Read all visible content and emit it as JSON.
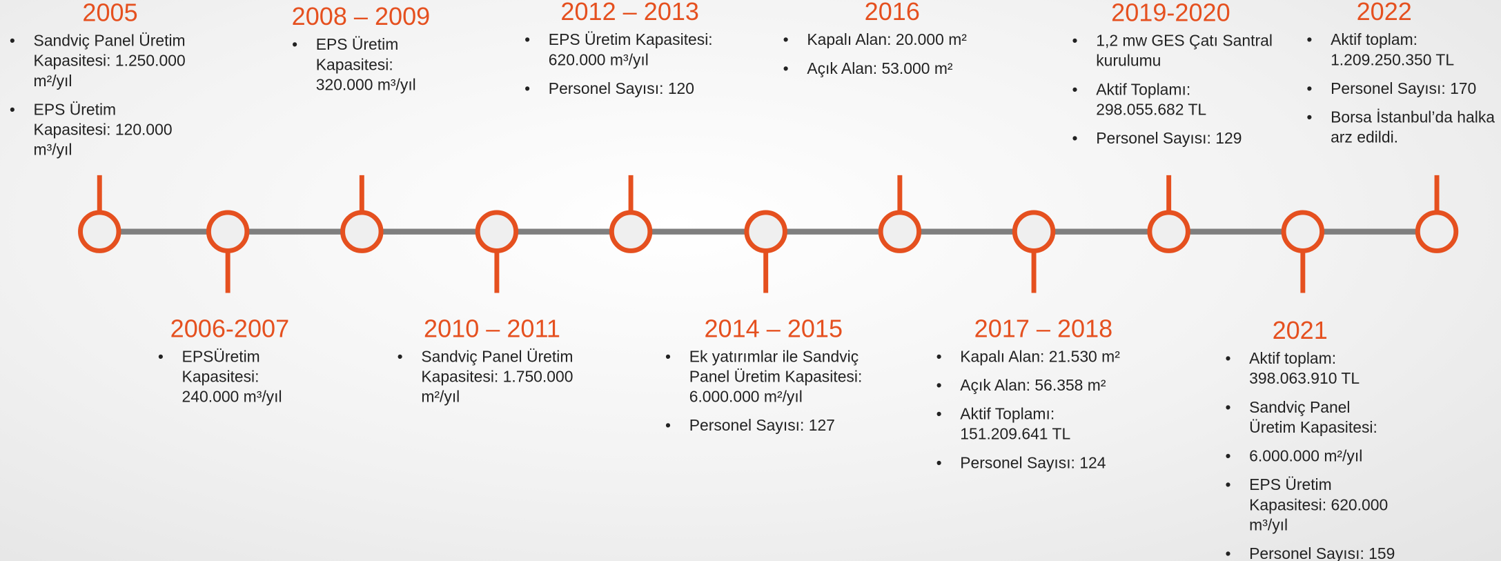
{
  "milestones": [
    {
      "year": "2005",
      "items": [
        "Sandviç Panel Üretim Kapasitesi: 1.250.000 m²/yıl",
        "EPS Üretim Kapasitesi: 120.000 m³/yıl"
      ]
    },
    {
      "year": "2006-2007",
      "items": [
        "EPSÜretim Kapasitesi: 240.000 m³/yıl"
      ]
    },
    {
      "year": "2008 – 2009",
      "items": [
        "EPS Üretim Kapasitesi: 320.000 m³/yıl"
      ]
    },
    {
      "year": "2010 – 2011",
      "items": [
        "Sandviç Panel Üretim Kapasitesi: 1.750.000 m²/yıl"
      ]
    },
    {
      "year": "2012 – 2013",
      "items": [
        "EPS Üretim  Kapasitesi: 620.000 m³/yıl",
        "Personel Sayısı: 120"
      ]
    },
    {
      "year": "2014 – 2015",
      "items": [
        "Ek yatırımlar ile Sandviç Panel Üretim Kapasitesi: 6.000.000 m²/yıl",
        "Personel Sayısı: 127"
      ]
    },
    {
      "year": "2016",
      "items": [
        "Kapalı Alan: 20.000 m²",
        "Açık Alan: 53.000 m²"
      ]
    },
    {
      "year": "2017 – 2018",
      "items": [
        "Kapalı Alan: 21.530 m²",
        "Açık Alan: 56.358 m²",
        "Aktif Toplamı: 151.209.641 TL",
        "Personel Sayısı: 124"
      ]
    },
    {
      "year": "2019-2020",
      "items": [
        "1,2 mw GES Çatı Santral kurulumu",
        "Aktif Toplamı: 298.055.682 TL",
        "Personel Sayısı: 129"
      ]
    },
    {
      "year": "2021",
      "items": [
        "Aktif toplam: 398.063.910 TL",
        "Sandviç Panel Üretim Kapasitesi:",
        "6.000.000 m²/yıl",
        "EPS Üretim Kapasitesi: 620.000 m³/yıl",
        "Personel Sayısı: 159"
      ]
    },
    {
      "year": "2022",
      "items": [
        "Aktif toplam: 1.209.250.350 TL",
        "Personel Sayısı: 170",
        "Borsa İstanbul’da halka arz edildi."
      ]
    }
  ]
}
